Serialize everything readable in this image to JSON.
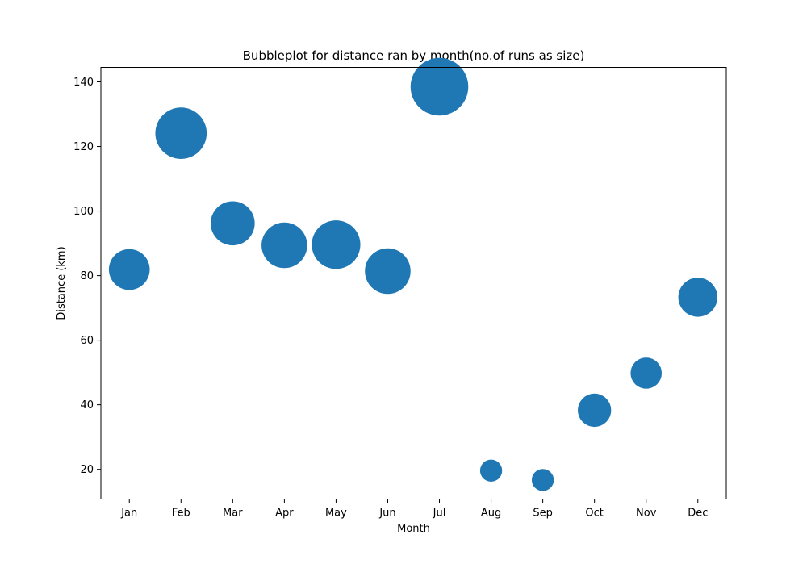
{
  "chart_data": {
    "type": "scatter",
    "title": "Bubbleplot for distance ran by month(no.of runs as size)",
    "xlabel": "Month",
    "ylabel": "Distance (km)",
    "categories": [
      "Jan",
      "Feb",
      "Mar",
      "Apr",
      "May",
      "Jun",
      "Jul",
      "Aug",
      "Sep",
      "Oct",
      "Nov",
      "Dec"
    ],
    "values": [
      81.9,
      124.1,
      96.2,
      89.4,
      89.6,
      81.4,
      138.5,
      19.6,
      16.7,
      38.3,
      49.8,
      73.3
    ],
    "size_values": [
      12,
      19,
      14,
      15,
      17,
      15,
      24,
      3.5,
      3.5,
      8,
      7,
      11
    ],
    "ylim": [
      10.8,
      144.5
    ],
    "yticks": [
      20,
      40,
      60,
      80,
      100,
      120,
      140
    ],
    "grid": false,
    "color": "#1f77b4"
  }
}
